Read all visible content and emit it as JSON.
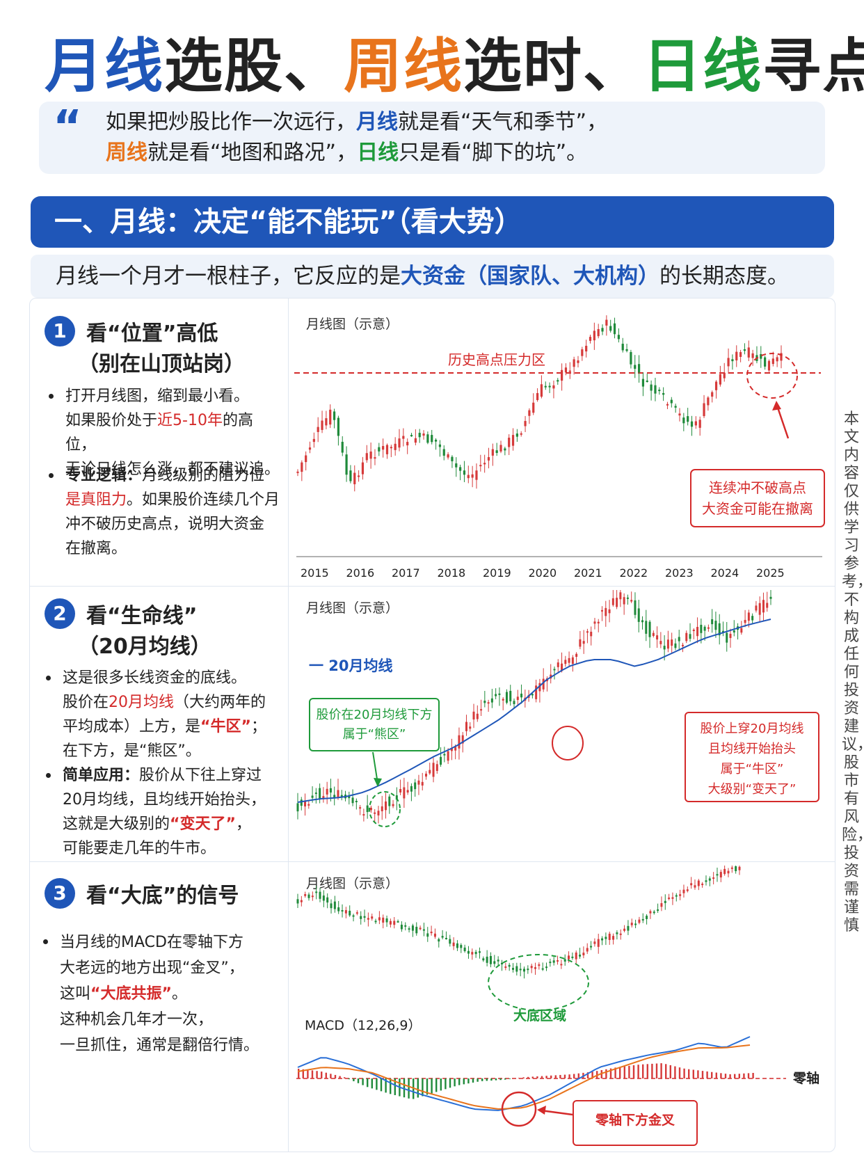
{
  "title": {
    "part1": "月线",
    "part2": "选股、",
    "part3": "周线",
    "part4": "选时、",
    "part5": "日线",
    "part6": "寻点"
  },
  "quote": {
    "mark": "“",
    "l1_a": "如果把炒股比作一次远行，",
    "l1_b": "月线",
    "l1_c": "就是看“天气和季节”，",
    "l2_a": "周线",
    "l2_b": "就是看“地图和路况”，",
    "l2_c": "日线",
    "l2_d": "只是看“脚下的坑”。"
  },
  "section": {
    "header": "一、月线：决定“能不能玩”（看大势）",
    "sub_a": "月线一个月才一根柱子，它反应的是",
    "sub_b": "大资金（国家队、大机构）",
    "sub_c": "的长期态度。"
  },
  "cards": {
    "c1": {
      "num": "1",
      "title1": "看“位置”高低",
      "title2": "（别在山顶站岗）",
      "b1_a": "打开月线图，缩到最小看。",
      "b1_b": "如果股价处于",
      "b1_c": "近5-10年",
      "b1_d": "的高位，",
      "b1_e": "无论日线怎么涨，都不建议追。",
      "b2_a": "专业逻辑：",
      "b2_b": "月线级别的阻力位",
      "b2_c": "是真阻力",
      "b2_d": "。如果股价连续几个月",
      "b2_e": "冲不破历史高点，说明大资金",
      "b2_f": "在撤离。"
    },
    "c2": {
      "num": "2",
      "title1": "看“生命线”",
      "title2": "（20月均线）",
      "b1_a": "这是很多长线资金的底线。",
      "b1_b": "股价在",
      "b1_c": "20月均线",
      "b1_d": "（大约两年的",
      "b1_e": "平均成本）上方，是",
      "b1_f": "“牛区”",
      "b1_g": "；",
      "b1_h": "在下方，是“熊区”。",
      "b2_a": "简单应用：",
      "b2_b": "股价从下往上穿过",
      "b2_c": "20月均线，且均线开始抬头，",
      "b2_d": "这就是大级别的",
      "b2_e": "“变天了”",
      "b2_f": "，",
      "b2_g": "可能要走几年的牛市。"
    },
    "c3": {
      "num": "3",
      "title1": "看“大底”的信号",
      "b1_a": "当月线的MACD在零轴下方",
      "b1_b": "大老远的地方出现“金叉”，",
      "b1_c": "这叫",
      "b1_d": "“大底共振”",
      "b1_e": "。",
      "b1_f": "这种机会几年才一次，",
      "b1_g": "一旦抓住，通常是翻倍行情。"
    }
  },
  "charts": {
    "ch1": {
      "caption": "月线图（示意）",
      "resistance_label": "历史高点压力区",
      "callout1": "连续冲不破高点",
      "callout2": "大资金可能在撤离",
      "years": [
        "2015",
        "2016",
        "2017",
        "2018",
        "2019",
        "2020",
        "2021",
        "2022",
        "2023",
        "2024",
        "2025"
      ]
    },
    "ch2": {
      "caption": "月线图（示意）",
      "legend": "一 20月均线",
      "bear1": "股价在20月均线下方",
      "bear2": "属于“熊区”",
      "bull1": "股价上穿20月均线",
      "bull2": "且均线开始抬头",
      "bull3": "属于“牛区”",
      "bull4": "大级别“变天了”"
    },
    "ch3": {
      "caption": "月线图（示意）",
      "bottom_label": "大底区域",
      "macd_label": "MACD（12,26,9）",
      "zero_label": "零轴",
      "cross_label": "零轴下方金叉"
    }
  },
  "side_note": "本文内容仅供学习参考，不构成任何投资建议，股市有风险，投资需谨慎",
  "colors": {
    "blue": "#1f56b8",
    "orange": "#e8741c",
    "green": "#1e9a3a",
    "red": "#d42a2a",
    "candle_up": "#d63a3a",
    "candle_down": "#1f8a3a"
  }
}
